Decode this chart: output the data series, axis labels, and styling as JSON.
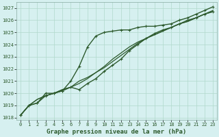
{
  "title": "Graphe pression niveau de la mer (hPa)",
  "bg_color": "#d6f0f0",
  "grid_color": "#b0d8cc",
  "line_color": "#2d5a2d",
  "xlim": [
    -0.5,
    23.5
  ],
  "ylim": [
    1017.8,
    1027.5
  ],
  "yticks": [
    1018,
    1019,
    1020,
    1021,
    1022,
    1023,
    1024,
    1025,
    1026,
    1027
  ],
  "xticks": [
    0,
    1,
    2,
    3,
    4,
    5,
    6,
    7,
    8,
    9,
    10,
    11,
    12,
    13,
    14,
    15,
    16,
    17,
    18,
    19,
    20,
    21,
    22,
    23
  ],
  "series": [
    {
      "y": [
        1018.2,
        1019.0,
        1019.2,
        1020.0,
        1020.0,
        1020.2,
        1021.0,
        1022.2,
        1023.8,
        1024.7,
        1025.0,
        1025.1,
        1025.2,
        1025.2,
        1025.4,
        1025.5,
        1025.5,
        1025.6,
        1025.7,
        1026.0,
        1026.2,
        1026.5,
        1026.8,
        1027.1
      ],
      "marker": true,
      "lw": 1.0
    },
    {
      "y": [
        1018.2,
        1019.0,
        1019.5,
        1019.8,
        1020.0,
        1020.3,
        1020.5,
        1020.8,
        1021.2,
        1021.7,
        1022.2,
        1022.8,
        1023.3,
        1023.8,
        1024.2,
        1024.5,
        1024.8,
        1025.1,
        1025.4,
        1025.7,
        1025.9,
        1026.2,
        1026.5,
        1026.8
      ],
      "marker": false,
      "lw": 0.9
    },
    {
      "y": [
        1018.2,
        1019.0,
        1019.5,
        1019.8,
        1020.0,
        1020.3,
        1020.5,
        1021.0,
        1021.3,
        1021.7,
        1022.1,
        1022.6,
        1023.1,
        1023.6,
        1024.1,
        1024.5,
        1024.8,
        1025.1,
        1025.4,
        1025.7,
        1025.9,
        1026.2,
        1026.5,
        1026.7
      ],
      "marker": false,
      "lw": 0.9
    },
    {
      "y": [
        1018.2,
        1019.0,
        1019.2,
        1019.8,
        1020.0,
        1020.2,
        1020.5,
        1020.3,
        1020.8,
        1021.2,
        1021.8,
        1022.3,
        1022.8,
        1023.5,
        1024.0,
        1024.5,
        1024.9,
        1025.2,
        1025.4,
        1025.7,
        1026.0,
        1026.2,
        1026.5,
        1026.7
      ],
      "marker": true,
      "lw": 1.0
    }
  ],
  "title_fontsize": 6.5,
  "tick_fontsize": 5.0,
  "title_fontweight": "bold"
}
